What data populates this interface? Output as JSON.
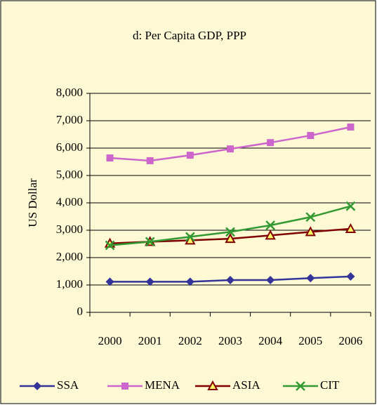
{
  "chart_data": {
    "type": "line",
    "title": "d: Per Capita GDP, PPP",
    "y_label": "US Dollar",
    "categories": [
      "2000",
      "2001",
      "2002",
      "2003",
      "2004",
      "2005",
      "2006"
    ],
    "series": [
      {
        "name": "SSA",
        "color": "#333399",
        "marker": "diamond",
        "values": [
          1120,
          1120,
          1120,
          1180,
          1180,
          1250,
          1310
        ]
      },
      {
        "name": "MENA",
        "color": "#cc66cc",
        "marker": "square",
        "values": [
          5640,
          5540,
          5740,
          5970,
          6200,
          6460,
          6770
        ]
      },
      {
        "name": "ASIA",
        "color": "#800000",
        "marker": "triangle",
        "values": [
          2520,
          2580,
          2630,
          2690,
          2810,
          2940,
          3050
        ]
      },
      {
        "name": "CIT",
        "color": "#339933",
        "marker": "x",
        "values": [
          2450,
          2580,
          2760,
          2940,
          3180,
          3480,
          3880
        ]
      }
    ],
    "ylim": [
      0,
      8000
    ],
    "yticks": [
      {
        "value": 0,
        "label": "0"
      },
      {
        "value": 1000,
        "label": "1,000"
      },
      {
        "value": 2000,
        "label": "2,000"
      },
      {
        "value": 3000,
        "label": "3,000"
      },
      {
        "value": 4000,
        "label": "4,000"
      },
      {
        "value": 5000,
        "label": "5,000"
      },
      {
        "value": 6000,
        "label": "6,000"
      },
      {
        "value": 7000,
        "label": "7,000"
      },
      {
        "value": 8000,
        "label": "8,000"
      }
    ],
    "grid": true,
    "legend": "bottom",
    "background": "#fcf9d4"
  }
}
